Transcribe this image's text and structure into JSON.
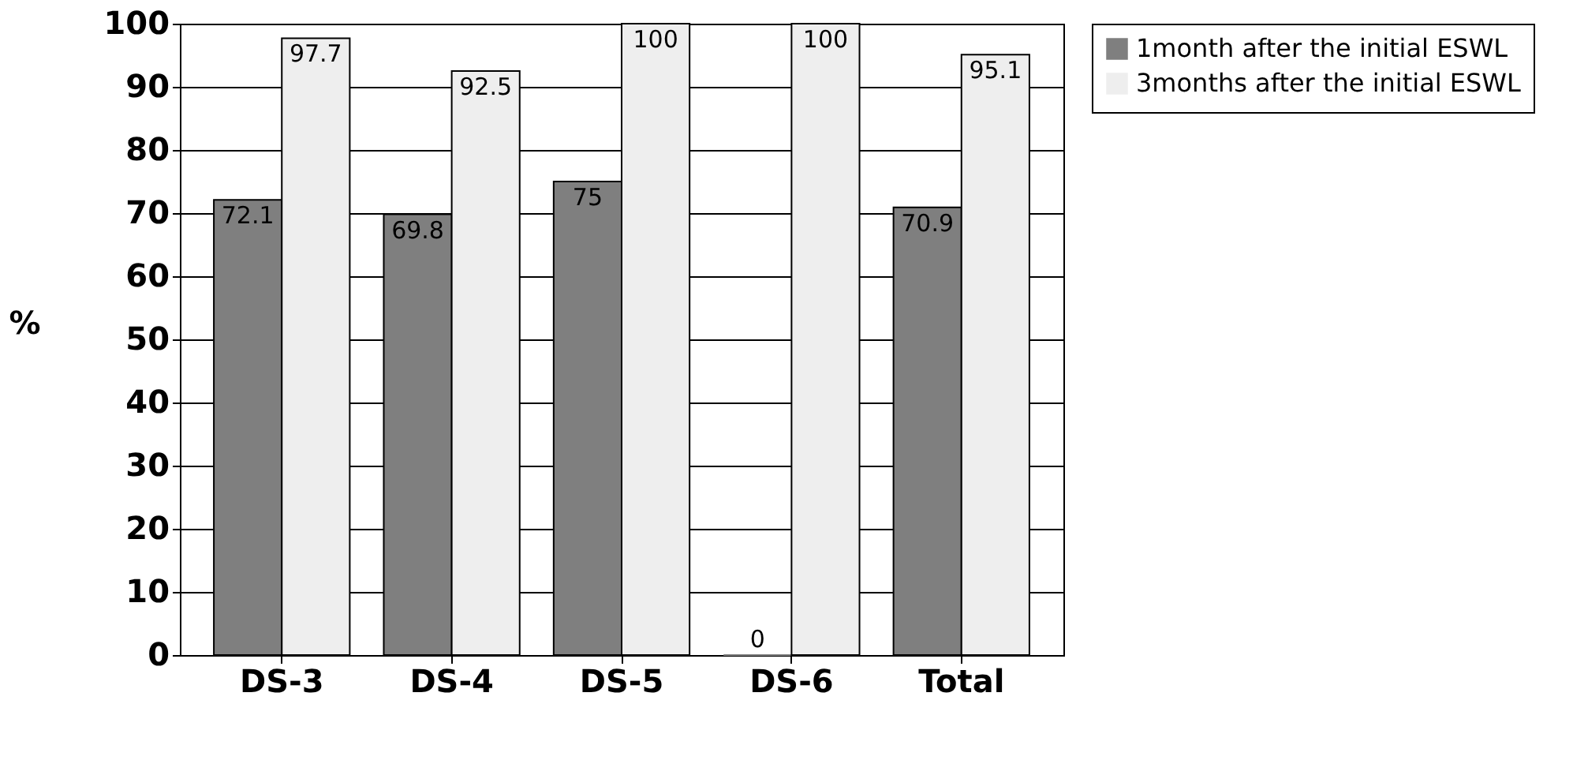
{
  "chart_data": {
    "type": "bar",
    "ylabel": "%",
    "categories": [
      "DS-3",
      "DS-4",
      "DS-5",
      "DS-6",
      "Total"
    ],
    "series": [
      {
        "name": "1month after the initial ESWL",
        "color": "#7f7f7f",
        "values": [
          72.1,
          69.8,
          75,
          0,
          70.9
        ]
      },
      {
        "name": "3months after the initial ESWL",
        "color": "#eeeeee",
        "values": [
          97.7,
          92.5,
          100,
          100,
          95.1
        ]
      }
    ],
    "ylim": [
      0,
      100
    ],
    "yticks": [
      0,
      10,
      20,
      30,
      40,
      50,
      60,
      70,
      80,
      90,
      100
    ],
    "grid": "y",
    "legend": "right",
    "data_labels": true
  }
}
